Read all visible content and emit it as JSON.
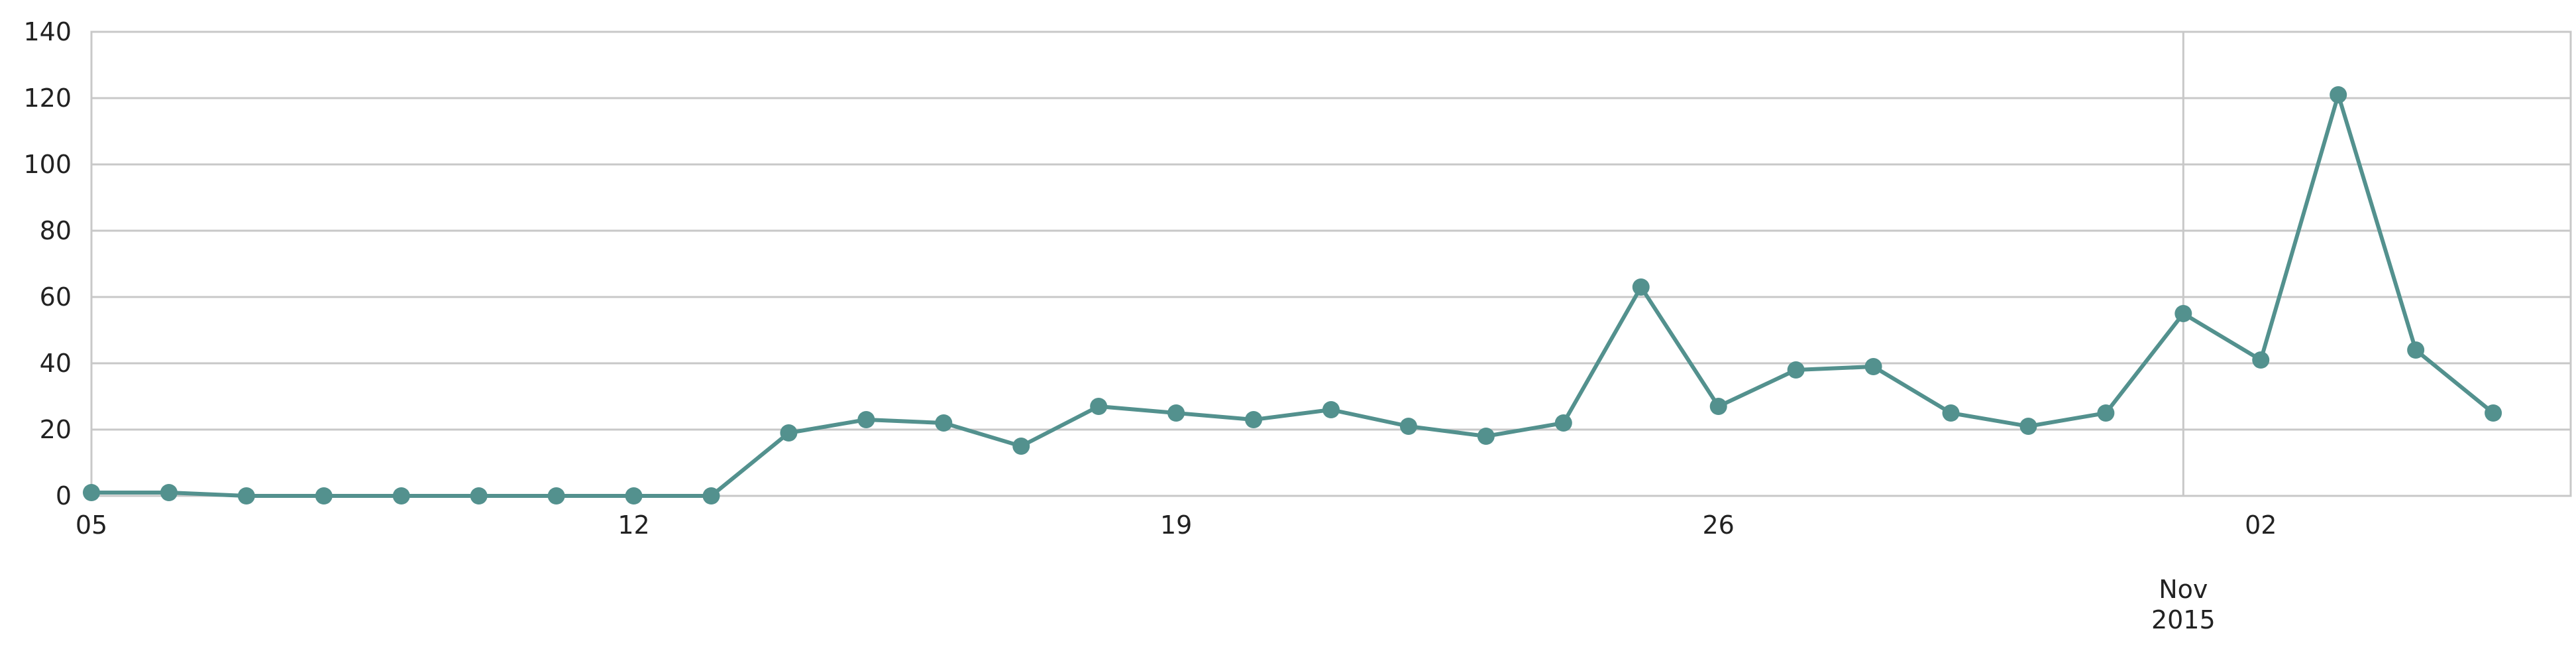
{
  "chart_data": {
    "type": "line",
    "title": "",
    "xlabel": "",
    "ylabel": "",
    "x_start": "2015-10-05",
    "x_end": "2015-11-06",
    "ylim": [
      0,
      140
    ],
    "y_ticks": [
      0,
      20,
      40,
      60,
      80,
      100,
      120,
      140
    ],
    "x_ticks": [
      {
        "date": "2015-10-05",
        "label": "05"
      },
      {
        "date": "2015-10-12",
        "label": "12"
      },
      {
        "date": "2015-10-19",
        "label": "19"
      },
      {
        "date": "2015-10-26",
        "label": "26"
      },
      {
        "date": "2015-11-02",
        "label": "02"
      }
    ],
    "month_marker": {
      "date": "2015-11-01",
      "month": "Nov",
      "year": "2015"
    },
    "grid": "horizontal",
    "color": "#53918e",
    "x": [
      "2015-10-05",
      "2015-10-06",
      "2015-10-07",
      "2015-10-08",
      "2015-10-09",
      "2015-10-10",
      "2015-10-11",
      "2015-10-12",
      "2015-10-13",
      "2015-10-14",
      "2015-10-15",
      "2015-10-16",
      "2015-10-17",
      "2015-10-18",
      "2015-10-19",
      "2015-10-20",
      "2015-10-21",
      "2015-10-22",
      "2015-10-23",
      "2015-10-24",
      "2015-10-25",
      "2015-10-26",
      "2015-10-27",
      "2015-10-28",
      "2015-10-29",
      "2015-10-30",
      "2015-10-31",
      "2015-11-01",
      "2015-11-02",
      "2015-11-03",
      "2015-11-04",
      "2015-11-05"
    ],
    "values": [
      1,
      1,
      0,
      0,
      0,
      0,
      0,
      0,
      0,
      19,
      23,
      22,
      15,
      27,
      25,
      23,
      26,
      21,
      18,
      22,
      63,
      27,
      38,
      39,
      25,
      21,
      25,
      55,
      41,
      121,
      44,
      25
    ]
  }
}
